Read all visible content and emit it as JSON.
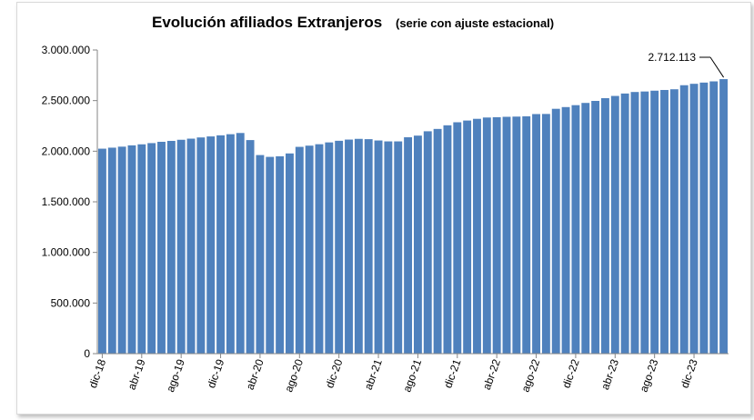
{
  "chart_data": {
    "type": "bar",
    "title": "Evolución afiliados Extranjeros",
    "subtitle": "(serie con ajuste estacional)",
    "xlabel": "",
    "ylabel": "",
    "ylim": [
      0,
      3000000
    ],
    "yticks": [
      0,
      500000,
      1000000,
      1500000,
      2000000,
      2500000,
      3000000
    ],
    "ytick_labels": [
      "0",
      "500.000",
      "1.000.000",
      "1.500.000",
      "2.000.000",
      "2.500.000",
      "3.000.000"
    ],
    "xtick_labels": [
      "dic-18",
      "abr-19",
      "ago-19",
      "dic-19",
      "abr-20",
      "ago-20",
      "dic-20",
      "abr-21",
      "ago-21",
      "dic-21",
      "abr-22",
      "ago-22",
      "dic-22",
      "abr-23",
      "ago-23",
      "dic-23"
    ],
    "xtick_every": 4,
    "grid": false,
    "bar_color": "#4f81bd",
    "annotation": {
      "text": "2.712.113",
      "value": 2712113
    },
    "values": [
      2025000,
      2035000,
      2045000,
      2058000,
      2068000,
      2080000,
      2093000,
      2102000,
      2113000,
      2124000,
      2136000,
      2146000,
      2157000,
      2168000,
      2180000,
      2110000,
      1962000,
      1944000,
      1950000,
      1978000,
      2043000,
      2055000,
      2069000,
      2087000,
      2103000,
      2115000,
      2122000,
      2119000,
      2106000,
      2097000,
      2097000,
      2138000,
      2154000,
      2197000,
      2220000,
      2256000,
      2286000,
      2303000,
      2320000,
      2333000,
      2336000,
      2340000,
      2342000,
      2345000,
      2367000,
      2368000,
      2419000,
      2436000,
      2455000,
      2477000,
      2497000,
      2524000,
      2546000,
      2570000,
      2585000,
      2590000,
      2598000,
      2605000,
      2612000,
      2652000,
      2666000,
      2678000,
      2690000,
      2712113
    ]
  }
}
